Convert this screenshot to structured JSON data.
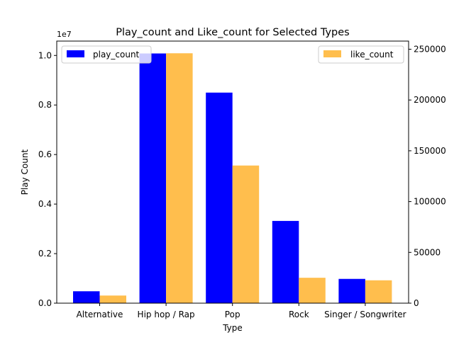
{
  "chart_data": {
    "type": "bar",
    "title": "Play_count and Like_count for Selected Types",
    "xlabel": "Type",
    "ylabel_left": "Play Count",
    "ylabel_right": "",
    "left_axis_offset_label": "1e7",
    "categories": [
      "Alternative",
      "Hip hop / Rap",
      "Pop",
      "Rock",
      "Singer / Songwriter"
    ],
    "series": [
      {
        "name": "play_count",
        "axis": "left",
        "color": "#0000ff",
        "values": [
          480000,
          10080000,
          8500000,
          3320000,
          980000
        ]
      },
      {
        "name": "like_count",
        "axis": "right",
        "color": "#ffbe4d",
        "values": [
          7500,
          246000,
          135500,
          25000,
          22500
        ]
      }
    ],
    "ylim_left": [
      0,
      10580000
    ],
    "ylim_right": [
      0,
      258000
    ],
    "yticks_left": [
      0,
      2000000,
      4000000,
      6000000,
      8000000,
      10000000
    ],
    "yticks_left_labels": [
      "0.0",
      "0.2",
      "0.4",
      "0.6",
      "0.8",
      "1.0"
    ],
    "yticks_right": [
      0,
      50000,
      100000,
      150000,
      200000,
      250000
    ],
    "yticks_right_labels": [
      "0",
      "50000",
      "100000",
      "150000",
      "200000",
      "250000"
    ],
    "ylabel_left_color": "#0000ff",
    "grid": false,
    "legend_left_placement": "upper-left",
    "legend_right_placement": "upper-right"
  }
}
